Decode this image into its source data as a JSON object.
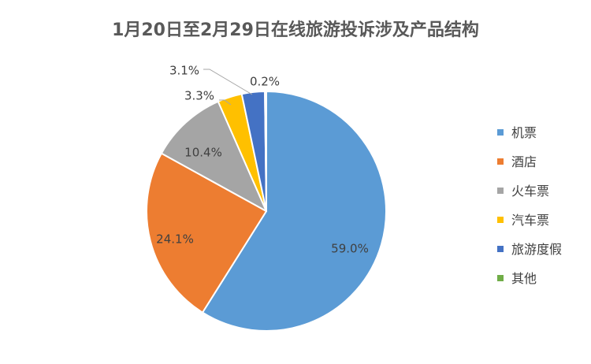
{
  "chart_data": {
    "type": "pie",
    "title": "1月20日至2月29日在线旅游投诉涉及产品结构",
    "slices": [
      {
        "name": "机票",
        "value": 59.0,
        "label": "59.0%",
        "color": "#5B9BD5"
      },
      {
        "name": "酒店",
        "value": 24.1,
        "label": "24.1%",
        "color": "#ED7D31"
      },
      {
        "name": "火车票",
        "value": 10.4,
        "label": "10.4%",
        "color": "#A5A5A5"
      },
      {
        "name": "汽车票",
        "value": 3.3,
        "label": "3.3%",
        "color": "#FFC000"
      },
      {
        "name": "旅游度假",
        "value": 3.1,
        "label": "3.1%",
        "color": "#4472C4"
      },
      {
        "name": "其他",
        "value": 0.2,
        "label": "0.2%",
        "color": "#70AD47"
      }
    ],
    "legend_position": "right",
    "start_angle": "12 o'clock",
    "direction": "clockwise"
  }
}
